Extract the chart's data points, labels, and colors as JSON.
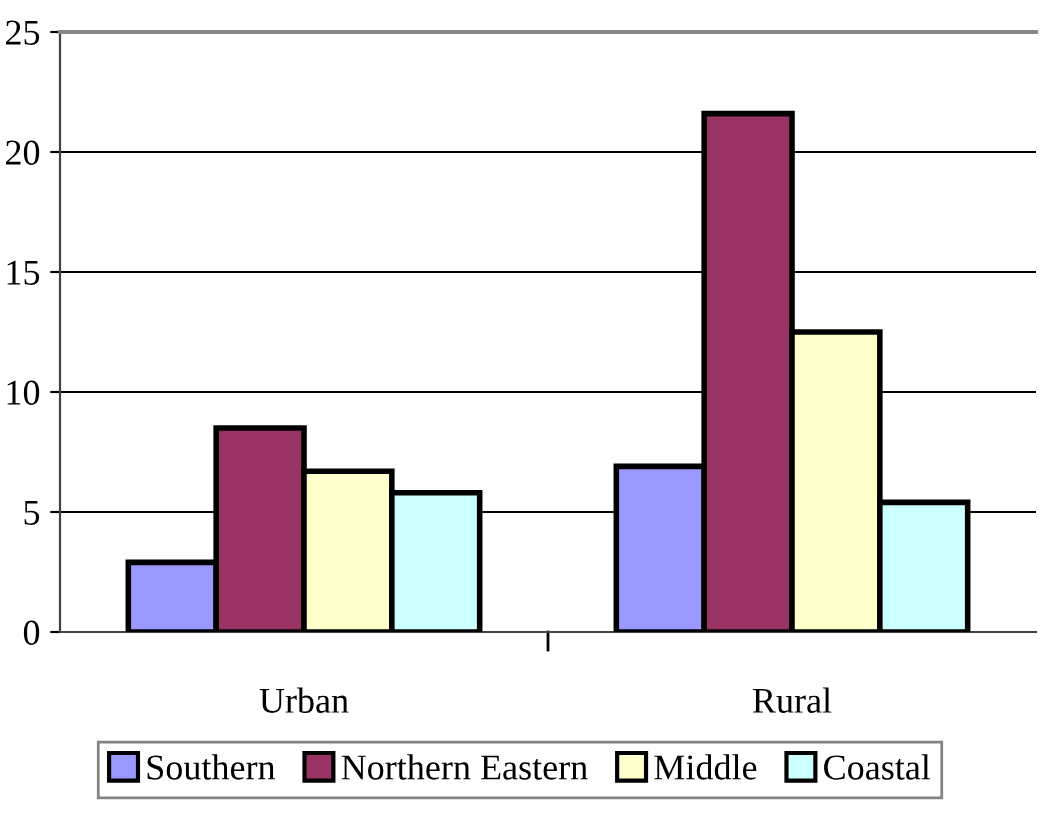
{
  "chart_data": {
    "type": "bar",
    "categories": [
      "Urban",
      "Rural"
    ],
    "series": [
      {
        "name": "Southern",
        "color": "#9999ff",
        "values": [
          2.9,
          6.9
        ]
      },
      {
        "name": "Northern Eastern",
        "color": "#993366",
        "values": [
          8.5,
          21.6
        ]
      },
      {
        "name": "Middle",
        "color": "#ffffcc",
        "values": [
          6.7,
          12.5
        ]
      },
      {
        "name": "Coastal",
        "color": "#ccffff",
        "values": [
          5.8,
          5.4
        ]
      }
    ],
    "ylim": [
      0,
      25
    ],
    "yticks": [
      0,
      5,
      10,
      15,
      20,
      25
    ],
    "grid": "y",
    "legend": "bottom"
  }
}
